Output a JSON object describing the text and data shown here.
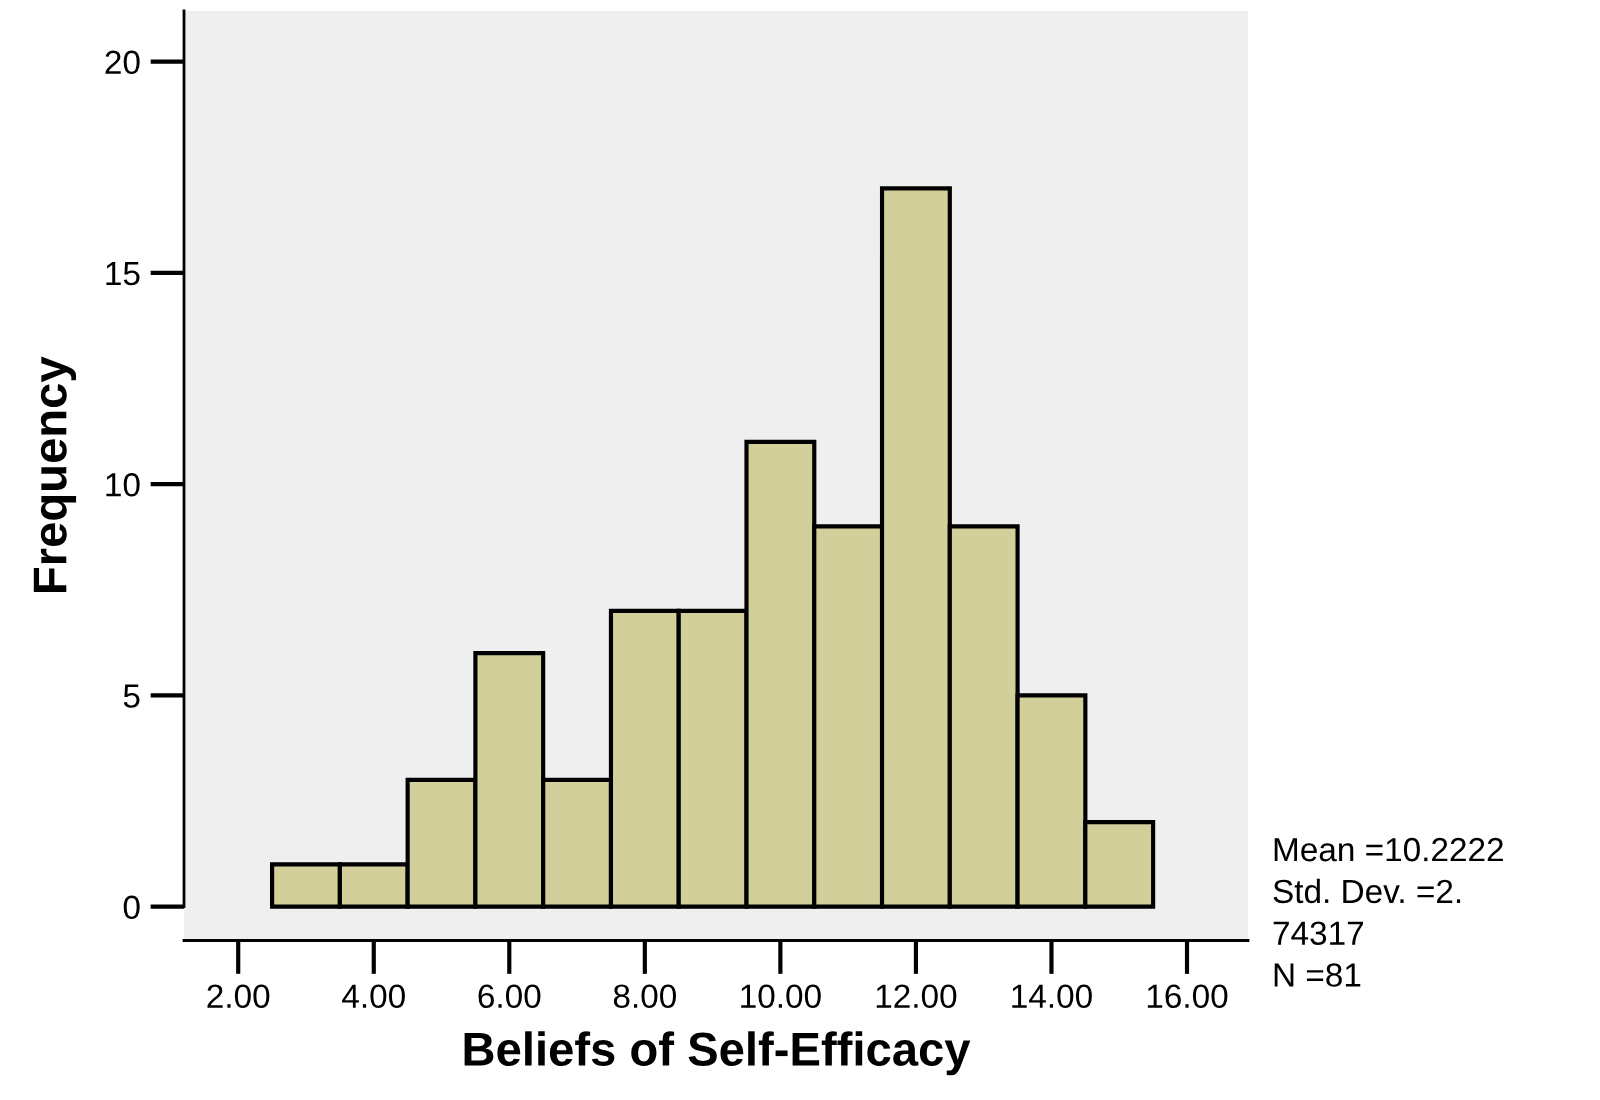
{
  "chart_data": {
    "type": "histogram",
    "xlabel": "Beliefs of Self-Efficacy",
    "ylabel": "Frequency",
    "bins": [
      2.5,
      3.5,
      4.5,
      5.5,
      6.5,
      7.5,
      8.5,
      9.5,
      10.5,
      11.5,
      12.5,
      13.5,
      14.5,
      15.5
    ],
    "values": [
      1,
      1,
      3,
      6,
      3,
      7,
      7,
      11,
      9,
      17,
      9,
      5,
      2
    ],
    "color": "#d3cf9b",
    "xlim": [
      1.2,
      16.9
    ],
    "ylim": [
      -0.8,
      21.2
    ],
    "xticks": [
      {
        "value": 2,
        "label": "2.00"
      },
      {
        "value": 4,
        "label": "4.00"
      },
      {
        "value": 6,
        "label": "6.00"
      },
      {
        "value": 8,
        "label": "8.00"
      },
      {
        "value": 10,
        "label": "10.00"
      },
      {
        "value": 12,
        "label": "12.00"
      },
      {
        "value": 14,
        "label": "14.00"
      },
      {
        "value": 16,
        "label": "16.00"
      }
    ],
    "yticks": [
      0,
      5,
      10,
      15,
      20
    ],
    "grid": false,
    "annotations": [
      "Mean =10.2222",
      "Std. Dev. =2.",
      "74317",
      "N =81"
    ]
  }
}
